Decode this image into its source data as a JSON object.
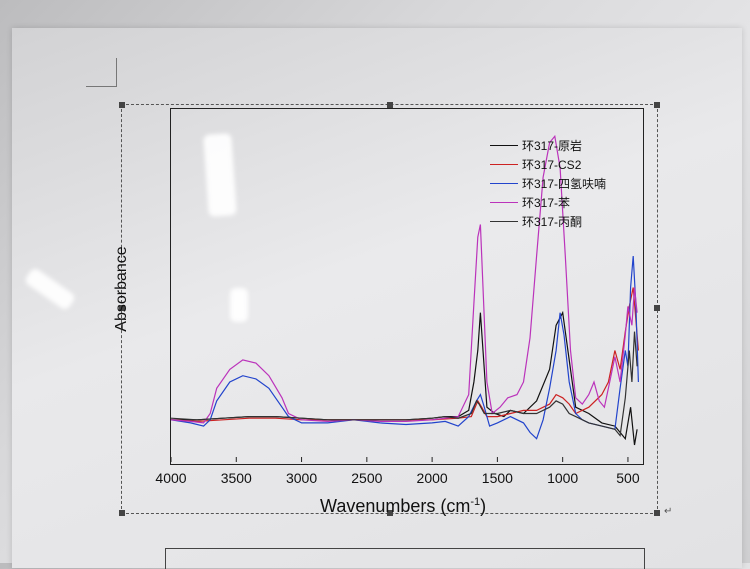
{
  "chart_data": {
    "type": "line",
    "xlabel": "Wavenumbers (cm",
    "xlabel_sup": "-1",
    "xlabel_suffix": ")",
    "ylabel": "Absorbance",
    "xlim": [
      4000,
      400
    ],
    "x_reversed": true,
    "ylim": [
      0,
      1
    ],
    "grid": false,
    "legend_position": "top-right",
    "x_ticks": [
      "4000",
      "3500",
      "3000",
      "2500",
      "2000",
      "1500",
      "1000",
      "500"
    ],
    "x_tick_values": [
      4000,
      3500,
      3000,
      2500,
      2000,
      1500,
      1000,
      500
    ],
    "series": [
      {
        "name": "环317-原岩",
        "color": "#111111",
        "points": [
          [
            4000,
            0.08
          ],
          [
            3800,
            0.08
          ],
          [
            3600,
            0.085
          ],
          [
            3400,
            0.09
          ],
          [
            3200,
            0.09
          ],
          [
            3000,
            0.085
          ],
          [
            2800,
            0.08
          ],
          [
            2500,
            0.08
          ],
          [
            2200,
            0.08
          ],
          [
            2000,
            0.085
          ],
          [
            1900,
            0.09
          ],
          [
            1800,
            0.09
          ],
          [
            1720,
            0.11
          ],
          [
            1680,
            0.2
          ],
          [
            1650,
            0.3
          ],
          [
            1630,
            0.42
          ],
          [
            1610,
            0.3
          ],
          [
            1580,
            0.12
          ],
          [
            1520,
            0.1
          ],
          [
            1450,
            0.09
          ],
          [
            1400,
            0.11
          ],
          [
            1300,
            0.1
          ],
          [
            1200,
            0.14
          ],
          [
            1100,
            0.24
          ],
          [
            1050,
            0.38
          ],
          [
            1000,
            0.42
          ],
          [
            960,
            0.3
          ],
          [
            900,
            0.12
          ],
          [
            800,
            0.1
          ],
          [
            700,
            0.07
          ],
          [
            600,
            0.06
          ],
          [
            560,
            0.04
          ],
          [
            520,
            0.02
          ],
          [
            480,
            0.12
          ],
          [
            450,
            0.0
          ],
          [
            430,
            0.05
          ]
        ]
      },
      {
        "name": "环317-CS2",
        "color": "#cc2222",
        "points": [
          [
            4000,
            0.08
          ],
          [
            3800,
            0.075
          ],
          [
            3600,
            0.08
          ],
          [
            3400,
            0.085
          ],
          [
            3200,
            0.085
          ],
          [
            3000,
            0.08
          ],
          [
            2800,
            0.08
          ],
          [
            2500,
            0.08
          ],
          [
            2200,
            0.08
          ],
          [
            2000,
            0.08
          ],
          [
            1800,
            0.085
          ],
          [
            1700,
            0.09
          ],
          [
            1650,
            0.14
          ],
          [
            1620,
            0.12
          ],
          [
            1580,
            0.09
          ],
          [
            1500,
            0.09
          ],
          [
            1400,
            0.1
          ],
          [
            1300,
            0.11
          ],
          [
            1200,
            0.11
          ],
          [
            1100,
            0.13
          ],
          [
            1050,
            0.16
          ],
          [
            1000,
            0.15
          ],
          [
            950,
            0.13
          ],
          [
            900,
            0.1
          ],
          [
            800,
            0.12
          ],
          [
            700,
            0.16
          ],
          [
            650,
            0.2
          ],
          [
            600,
            0.3
          ],
          [
            560,
            0.24
          ],
          [
            520,
            0.36
          ],
          [
            490,
            0.44
          ],
          [
            460,
            0.5
          ],
          [
            440,
            0.4
          ],
          [
            420,
            0.3
          ]
        ]
      },
      {
        "name": "环317-四氢呋喃",
        "color": "#2244cc",
        "points": [
          [
            4000,
            0.08
          ],
          [
            3850,
            0.07
          ],
          [
            3750,
            0.06
          ],
          [
            3700,
            0.08
          ],
          [
            3650,
            0.14
          ],
          [
            3550,
            0.2
          ],
          [
            3450,
            0.22
          ],
          [
            3350,
            0.21
          ],
          [
            3250,
            0.18
          ],
          [
            3150,
            0.12
          ],
          [
            3100,
            0.09
          ],
          [
            3000,
            0.07
          ],
          [
            2800,
            0.07
          ],
          [
            2600,
            0.08
          ],
          [
            2400,
            0.07
          ],
          [
            2200,
            0.065
          ],
          [
            2000,
            0.07
          ],
          [
            1900,
            0.075
          ],
          [
            1800,
            0.06
          ],
          [
            1720,
            0.09
          ],
          [
            1660,
            0.14
          ],
          [
            1630,
            0.16
          ],
          [
            1600,
            0.12
          ],
          [
            1560,
            0.06
          ],
          [
            1500,
            0.07
          ],
          [
            1400,
            0.09
          ],
          [
            1300,
            0.07
          ],
          [
            1250,
            0.04
          ],
          [
            1200,
            0.02
          ],
          [
            1150,
            0.08
          ],
          [
            1100,
            0.18
          ],
          [
            1050,
            0.3
          ],
          [
            1020,
            0.42
          ],
          [
            990,
            0.35
          ],
          [
            950,
            0.2
          ],
          [
            900,
            0.1
          ],
          [
            850,
            0.08
          ],
          [
            800,
            0.07
          ],
          [
            700,
            0.06
          ],
          [
            600,
            0.05
          ],
          [
            560,
            0.18
          ],
          [
            520,
            0.3
          ],
          [
            500,
            0.25
          ],
          [
            480,
            0.5
          ],
          [
            460,
            0.6
          ],
          [
            440,
            0.45
          ],
          [
            420,
            0.2
          ]
        ]
      },
      {
        "name": "环317-苯",
        "color": "#bb33bb",
        "points": [
          [
            4000,
            0.08
          ],
          [
            3850,
            0.075
          ],
          [
            3750,
            0.07
          ],
          [
            3700,
            0.1
          ],
          [
            3650,
            0.18
          ],
          [
            3550,
            0.24
          ],
          [
            3450,
            0.27
          ],
          [
            3350,
            0.26
          ],
          [
            3250,
            0.22
          ],
          [
            3150,
            0.15
          ],
          [
            3100,
            0.1
          ],
          [
            3000,
            0.08
          ],
          [
            2800,
            0.075
          ],
          [
            2600,
            0.08
          ],
          [
            2400,
            0.075
          ],
          [
            2200,
            0.075
          ],
          [
            2000,
            0.08
          ],
          [
            1900,
            0.085
          ],
          [
            1800,
            0.09
          ],
          [
            1720,
            0.16
          ],
          [
            1680,
            0.45
          ],
          [
            1650,
            0.66
          ],
          [
            1630,
            0.7
          ],
          [
            1610,
            0.5
          ],
          [
            1580,
            0.2
          ],
          [
            1540,
            0.1
          ],
          [
            1480,
            0.12
          ],
          [
            1420,
            0.15
          ],
          [
            1350,
            0.16
          ],
          [
            1300,
            0.2
          ],
          [
            1250,
            0.34
          ],
          [
            1200,
            0.6
          ],
          [
            1150,
            0.85
          ],
          [
            1100,
            0.96
          ],
          [
            1060,
            0.98
          ],
          [
            1020,
            0.88
          ],
          [
            980,
            0.6
          ],
          [
            940,
            0.3
          ],
          [
            900,
            0.15
          ],
          [
            850,
            0.13
          ],
          [
            800,
            0.16
          ],
          [
            760,
            0.2
          ],
          [
            720,
            0.14
          ],
          [
            680,
            0.12
          ],
          [
            640,
            0.2
          ],
          [
            600,
            0.28
          ],
          [
            560,
            0.2
          ],
          [
            520,
            0.35
          ],
          [
            500,
            0.44
          ],
          [
            470,
            0.38
          ],
          [
            450,
            0.5
          ],
          [
            430,
            0.42
          ]
        ]
      },
      {
        "name": "环317-丙酮",
        "color": "#333333",
        "points": [
          [
            4000,
            0.085
          ],
          [
            3800,
            0.08
          ],
          [
            3600,
            0.085
          ],
          [
            3400,
            0.09
          ],
          [
            3200,
            0.09
          ],
          [
            3000,
            0.085
          ],
          [
            2800,
            0.08
          ],
          [
            2500,
            0.08
          ],
          [
            2200,
            0.08
          ],
          [
            2000,
            0.085
          ],
          [
            1900,
            0.09
          ],
          [
            1800,
            0.085
          ],
          [
            1700,
            0.1
          ],
          [
            1660,
            0.14
          ],
          [
            1640,
            0.13
          ],
          [
            1600,
            0.1
          ],
          [
            1500,
            0.1
          ],
          [
            1400,
            0.11
          ],
          [
            1300,
            0.1
          ],
          [
            1200,
            0.1
          ],
          [
            1100,
            0.12
          ],
          [
            1050,
            0.14
          ],
          [
            1000,
            0.13
          ],
          [
            950,
            0.1
          ],
          [
            900,
            0.09
          ],
          [
            800,
            0.07
          ],
          [
            700,
            0.06
          ],
          [
            600,
            0.05
          ],
          [
            560,
            0.03
          ],
          [
            520,
            0.15
          ],
          [
            490,
            0.3
          ],
          [
            470,
            0.2
          ],
          [
            450,
            0.36
          ],
          [
            430,
            0.25
          ]
        ]
      }
    ]
  }
}
